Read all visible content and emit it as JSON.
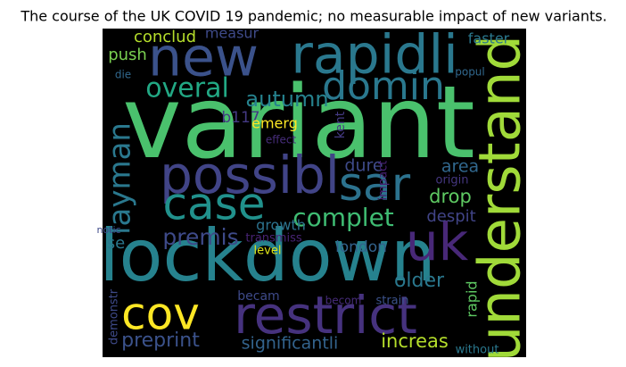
{
  "title": "The course of the UK COVID 19 pandemic; no measurable impact of new variants.",
  "words": [
    {
      "text": "variant",
      "color": "#4ac16d"
    },
    {
      "text": "lockdown",
      "color": "#26828e"
    },
    {
      "text": "new",
      "color": "#3b528b"
    },
    {
      "text": "rapidli",
      "color": "#2a788e"
    },
    {
      "text": "understand",
      "color": "#a0da39"
    },
    {
      "text": "possibl",
      "color": "#414487"
    },
    {
      "text": "sar",
      "color": "#2c728e"
    },
    {
      "text": "case",
      "color": "#21918c"
    },
    {
      "text": "domin",
      "color": "#2a788e"
    },
    {
      "text": "uk",
      "color": "#482878"
    },
    {
      "text": "restrict",
      "color": "#46327e"
    },
    {
      "text": "cov",
      "color": "#fde725"
    },
    {
      "text": "overal",
      "color": "#22a884"
    },
    {
      "text": "autumn",
      "color": "#26828e"
    },
    {
      "text": "layman",
      "color": "#2a788e"
    },
    {
      "text": "complet",
      "color": "#3fbc73"
    },
    {
      "text": "premis",
      "color": "#3e4a89"
    },
    {
      "text": "preprint",
      "color": "#3b528b"
    },
    {
      "text": "significantli",
      "color": "#33638d"
    },
    {
      "text": "increas",
      "color": "#b5de2b"
    },
    {
      "text": "older",
      "color": "#2a788e"
    },
    {
      "text": "london",
      "color": "#33638d"
    },
    {
      "text": "drop",
      "color": "#5ec962"
    },
    {
      "text": "area",
      "color": "#31688e"
    },
    {
      "text": "dure",
      "color": "#3e4a89"
    },
    {
      "text": "b117",
      "color": "#443983"
    },
    {
      "text": "emerg",
      "color": "#fde725"
    },
    {
      "text": "effect",
      "color": "#472d7b"
    },
    {
      "text": "kent",
      "color": "#443a83"
    },
    {
      "text": "impact",
      "color": "#482173"
    },
    {
      "text": "origin",
      "color": "#453781"
    },
    {
      "text": "despit",
      "color": "#414487"
    },
    {
      "text": "growth",
      "color": "#2c728e"
    },
    {
      "text": "conclud",
      "color": "#b5de2b"
    },
    {
      "text": "measur",
      "color": "#3e4a89"
    },
    {
      "text": "faster",
      "color": "#2a788e"
    },
    {
      "text": "push",
      "color": "#7ad151"
    },
    {
      "text": "die",
      "color": "#31688e"
    },
    {
      "text": "popul",
      "color": "#31688e"
    },
    {
      "text": "se",
      "color": "#2a788e"
    },
    {
      "text": "notic",
      "color": "#3e4a89"
    },
    {
      "text": "transmiss",
      "color": "#482475"
    },
    {
      "text": "level",
      "color": "#dde318"
    },
    {
      "text": "demonstr",
      "color": "#3e4a89"
    },
    {
      "text": "becam",
      "color": "#3e4a89"
    },
    {
      "text": "becom",
      "color": "#472c7a"
    },
    {
      "text": "strain",
      "color": "#3b528b"
    },
    {
      "text": "rapid",
      "color": "#5ec962"
    },
    {
      "text": "without",
      "color": "#2a788e"
    }
  ]
}
